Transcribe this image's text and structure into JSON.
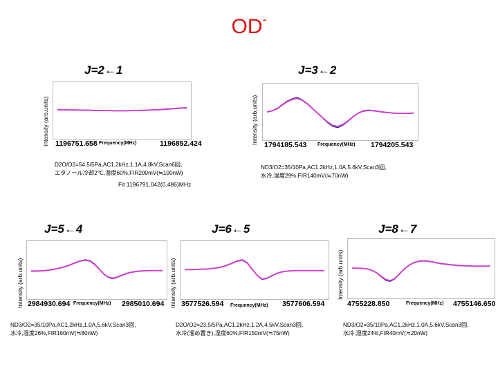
{
  "title": {
    "main": "OD",
    "sup": "-"
  },
  "chart_data": [
    {
      "type": "line",
      "id": "p0",
      "title": "J=2←1",
      "ylabel": "Intensity (arb.units)",
      "xlabel": "Frequency(MHz)",
      "xlim": [
        1196751.658,
        1196852.424
      ],
      "x_ticks": [
        "1196751.658",
        "1196852.424"
      ],
      "ylim": [
        -1,
        1
      ],
      "series": [
        {
          "name": "data",
          "color": "#1a1a80",
          "values": [
            0.05,
            0.05,
            0.04,
            0.03,
            0.03,
            0.03,
            0.02,
            0.02,
            0.02,
            0.02,
            0.01,
            0.01,
            0.0,
            0.0,
            0.0,
            0.0,
            -0.01,
            -0.01,
            -0.01,
            -0.01,
            -0.01,
            -0.01,
            -0.0,
            -0.0,
            0.0,
            0.0,
            0.01,
            0.01,
            0.02,
            0.02,
            0.03,
            0.04,
            0.04,
            0.05,
            0.06,
            0.07,
            0.08,
            0.09,
            0.1,
            0.1
          ]
        },
        {
          "name": "fit",
          "color": "#d040d0",
          "values": [
            0.03,
            0.03,
            0.03,
            0.02,
            0.02,
            0.02,
            0.02,
            0.01,
            0.01,
            0.01,
            0.01,
            0.0,
            0.0,
            0.0,
            0.0,
            -0.0,
            -0.0,
            -0.01,
            -0.01,
            -0.01,
            -0.01,
            -0.01,
            -0.0,
            -0.0,
            0.0,
            0.0,
            0.01,
            0.01,
            0.02,
            0.03,
            0.03,
            0.04,
            0.05,
            0.06,
            0.07,
            0.08,
            0.09,
            0.1,
            0.11,
            0.12
          ]
        }
      ],
      "conditions": [
        "D2O/O2=54.5/5Pa,AC1.2kHz,1.1A,4.8kV,Scan6回,",
        "エタノール冷却2℃,湿度60%,FIR200mV(≒100nW)"
      ],
      "fit_text": "Fit 1196791.042(0.486)MHz"
    },
    {
      "type": "line",
      "id": "p1",
      "title": "J=3←2",
      "ylabel": "Intensity (arb.units)",
      "xlabel": "Frequency(MHz)",
      "xlim": [
        1794185.543,
        1794205.543
      ],
      "x_ticks": [
        "1794185.543",
        "1794205.543"
      ],
      "ylim": [
        -1,
        1
      ],
      "series": [
        {
          "name": "data",
          "color": "#1a1a80",
          "values": [
            0.0,
            0.05,
            0.15,
            0.3,
            0.45,
            0.55,
            0.6,
            0.5,
            0.35,
            0.15,
            -0.05,
            -0.25,
            -0.45,
            -0.6,
            -0.65,
            -0.55,
            -0.4,
            -0.2,
            -0.05,
            0.05,
            0.08,
            0.06,
            0.03,
            0.0,
            -0.03,
            -0.05,
            -0.06,
            -0.06,
            -0.06,
            -0.05
          ]
        },
        {
          "name": "fit",
          "color": "#d040d0",
          "values": [
            0.0,
            0.04,
            0.13,
            0.28,
            0.42,
            0.52,
            0.56,
            0.48,
            0.33,
            0.14,
            -0.05,
            -0.24,
            -0.42,
            -0.56,
            -0.6,
            -0.52,
            -0.38,
            -0.2,
            -0.06,
            0.03,
            0.06,
            0.05,
            0.02,
            -0.01,
            -0.03,
            -0.05,
            -0.06,
            -0.06,
            -0.06,
            -0.05
          ]
        }
      ],
      "conditions": [
        "ND3/O2=35/10Pa,AC1.2kHz,1.0A,5.6kV,Scan3回,",
        "水冷,湿度29%,FIR140mV(≒70nW)"
      ]
    },
    {
      "type": "line",
      "id": "p2",
      "title": "J=5←4",
      "ylabel": "Intensity (arb.units)",
      "xlabel": "Frequency(MHz)",
      "xlim": [
        2984930.694,
        2985010.694
      ],
      "x_ticks": [
        "2984930.694",
        "2985010.694"
      ],
      "ylim": [
        -1,
        1
      ],
      "series": [
        {
          "name": "data",
          "color": "#1a1a80",
          "values": [
            -0.05,
            -0.05,
            -0.04,
            -0.02,
            0.0,
            0.03,
            0.07,
            0.12,
            0.18,
            0.25,
            0.32,
            0.38,
            0.42,
            0.38,
            0.25,
            0.05,
            -0.15,
            -0.3,
            -0.35,
            -0.3,
            -0.22,
            -0.15,
            -0.1,
            -0.06,
            -0.04,
            -0.03,
            -0.02,
            -0.02,
            -0.02,
            -0.02
          ]
        },
        {
          "name": "fit",
          "color": "#d040d0",
          "values": [
            -0.04,
            -0.04,
            -0.03,
            -0.02,
            0.0,
            0.03,
            0.07,
            0.11,
            0.17,
            0.24,
            0.31,
            0.37,
            0.4,
            0.36,
            0.23,
            0.04,
            -0.15,
            -0.28,
            -0.33,
            -0.28,
            -0.21,
            -0.14,
            -0.09,
            -0.06,
            -0.04,
            -0.03,
            -0.02,
            -0.02,
            -0.02,
            -0.02
          ]
        }
      ],
      "conditions": [
        "ND3/O2=35/10Pa,AC1.2kHz,1.0A,5.6kV,Scan3回,",
        "水冷,湿度26%,FIR160mV(≒80nW)"
      ]
    },
    {
      "type": "line",
      "id": "p3",
      "title": "J=6←5",
      "ylabel": "Intensity (arb.units)",
      "xlabel": "Frequency(MHz)",
      "xlim": [
        3577526.594,
        3577606.594
      ],
      "x_ticks": [
        "3577526.594",
        "3577606.594"
      ],
      "ylim": [
        -1,
        1
      ],
      "series": [
        {
          "name": "data",
          "color": "#1a1a80",
          "values": [
            0.02,
            0.02,
            0.02,
            0.03,
            0.04,
            0.05,
            0.07,
            0.1,
            0.15,
            0.22,
            0.3,
            0.38,
            0.42,
            0.3,
            0.05,
            -0.2,
            -0.38,
            -0.35,
            -0.25,
            -0.15,
            -0.09,
            -0.05,
            -0.03,
            -0.02,
            -0.02,
            -0.02,
            -0.02,
            -0.02,
            -0.02,
            -0.02
          ]
        },
        {
          "name": "fit",
          "color": "#d040d0",
          "values": [
            0.02,
            0.02,
            0.02,
            0.03,
            0.04,
            0.05,
            0.07,
            0.1,
            0.14,
            0.21,
            0.29,
            0.36,
            0.4,
            0.28,
            0.04,
            -0.2,
            -0.36,
            -0.33,
            -0.24,
            -0.14,
            -0.08,
            -0.05,
            -0.03,
            -0.02,
            -0.02,
            -0.02,
            -0.02,
            -0.02,
            -0.02,
            -0.02
          ]
        }
      ],
      "conditions": [
        "D2O/O2=23.5/5Pa,AC1.2kHz,1.2A,4.5kV,Scan3回,",
        "水冷(溜め置き),湿度60%,FIR150mV(≒75nW)"
      ]
    },
    {
      "type": "line",
      "id": "p4",
      "title": "J=8←7",
      "ylabel": "Intensity (arb.units)",
      "xlabel": "Frequency(MHz)",
      "xlim": [
        4755228.85,
        4755146.65
      ],
      "x_ticks": [
        "4755228.850",
        "4755146.650"
      ],
      "ylim": [
        -1,
        1
      ],
      "series": [
        {
          "name": "data",
          "color": "#1a1a80",
          "values": [
            0.02,
            0.02,
            0.01,
            0.0,
            -0.05,
            -0.15,
            -0.3,
            -0.45,
            -0.5,
            -0.4,
            -0.2,
            0.0,
            0.15,
            0.25,
            0.3,
            0.32,
            0.3,
            0.27,
            0.23,
            0.2,
            0.18,
            0.16,
            0.14,
            0.13,
            0.12,
            0.11,
            0.1,
            0.1,
            0.1,
            0.1
          ]
        },
        {
          "name": "fit",
          "color": "#d040d0",
          "values": [
            0.02,
            0.02,
            0.01,
            0.0,
            -0.05,
            -0.14,
            -0.28,
            -0.42,
            -0.47,
            -0.38,
            -0.19,
            0.0,
            0.14,
            0.24,
            0.29,
            0.31,
            0.29,
            0.26,
            0.22,
            0.19,
            0.17,
            0.15,
            0.13,
            0.12,
            0.11,
            0.1,
            0.1,
            0.1,
            0.1,
            0.1
          ]
        }
      ],
      "conditions": [
        "ND3/O2=35/10Pa,AC1.2kHz,1.0A,5.6kV,Scan3回,",
        "水冷,湿度24%,FIR40mV(≒20nW)"
      ]
    }
  ]
}
